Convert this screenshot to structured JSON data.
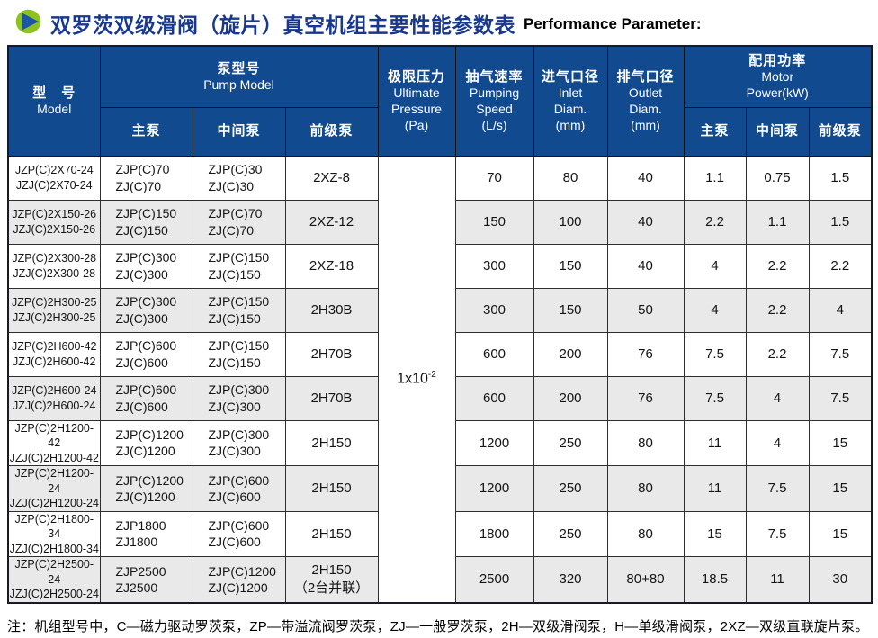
{
  "colors": {
    "header_blue": "#114a8e",
    "title_blue": "#17388c",
    "icon_green": "#8dc21f",
    "icon_triangle_blue": "#1b55a6",
    "row_shade": "#e9e9e9"
  },
  "title": {
    "zh": "双罗茨双级滑阀（旋片）真空机组主要性能参数表",
    "en": "Performance Parameter:"
  },
  "table": {
    "headers": {
      "model": {
        "zh": "型　号",
        "en": "Model"
      },
      "pump_model": {
        "zh": "泵型号",
        "en": "Pump Model"
      },
      "pump_sub": [
        "主泵",
        "中间泵",
        "前级泵"
      ],
      "ultimate_pressure": {
        "lines": [
          "极限压力",
          "Ultimate",
          "Pressure",
          "(Pa)"
        ]
      },
      "pumping_speed": {
        "lines": [
          "抽气速率",
          "Pumping",
          "Speed",
          "(L/s)"
        ]
      },
      "inlet_diam": {
        "lines": [
          "进气口径",
          "Inlet",
          "Diam.",
          "(mm)"
        ]
      },
      "outlet_diam": {
        "lines": [
          "排气口径",
          "Outlet",
          "Diam.",
          "(mm)"
        ]
      },
      "motor_power": {
        "lines": [
          "配用功率",
          "Motor",
          "Power(kW)"
        ]
      },
      "power_sub": [
        "主泵",
        "中间泵",
        "前级泵"
      ]
    },
    "ultimate_pressure_value": {
      "base": "1x10",
      "exp": "-2"
    },
    "rows": [
      {
        "model": [
          "JZP(C)2X70-24",
          "JZJ(C)2X70-24"
        ],
        "main_pump": [
          "ZJP(C)70",
          "ZJ(C)70"
        ],
        "mid_pump": [
          "ZJP(C)30",
          "ZJ(C)30"
        ],
        "fore_pump": [
          "2XZ-8"
        ],
        "speed": "70",
        "inlet": "80",
        "outlet": "40",
        "power": [
          "1.1",
          "0.75",
          "1.5"
        ]
      },
      {
        "model": [
          "JZP(C)2X150-26",
          "JZJ(C)2X150-26"
        ],
        "main_pump": [
          "ZJP(C)150",
          "ZJ(C)150"
        ],
        "mid_pump": [
          "ZJP(C)70",
          "ZJ(C)70"
        ],
        "fore_pump": [
          "2XZ-12"
        ],
        "speed": "150",
        "inlet": "100",
        "outlet": "40",
        "power": [
          "2.2",
          "1.1",
          "1.5"
        ]
      },
      {
        "model": [
          "JZP(C)2X300-28",
          "JZJ(C)2X300-28"
        ],
        "main_pump": [
          "ZJP(C)300",
          "ZJ(C)300"
        ],
        "mid_pump": [
          "ZJP(C)150",
          "ZJ(C)150"
        ],
        "fore_pump": [
          "2XZ-18"
        ],
        "speed": "300",
        "inlet": "150",
        "outlet": "40",
        "power": [
          "4",
          "2.2",
          "2.2"
        ]
      },
      {
        "model": [
          "JZP(C)2H300-25",
          "JZJ(C)2H300-25"
        ],
        "main_pump": [
          "ZJP(C)300",
          "ZJ(C)300"
        ],
        "mid_pump": [
          "ZJP(C)150",
          "ZJ(C)150"
        ],
        "fore_pump": [
          "2H30B"
        ],
        "speed": "300",
        "inlet": "150",
        "outlet": "50",
        "power": [
          "4",
          "2.2",
          "4"
        ]
      },
      {
        "model": [
          "JZP(C)2H600-42",
          "JZJ(C)2H600-42"
        ],
        "main_pump": [
          "ZJP(C)600",
          "ZJ(C)600"
        ],
        "mid_pump": [
          "ZJP(C)150",
          "ZJ(C)150"
        ],
        "fore_pump": [
          "2H70B"
        ],
        "speed": "600",
        "inlet": "200",
        "outlet": "76",
        "power": [
          "7.5",
          "2.2",
          "7.5"
        ]
      },
      {
        "model": [
          "JZP(C)2H600-24",
          "JZJ(C)2H600-24"
        ],
        "main_pump": [
          "ZJP(C)600",
          "ZJ(C)600"
        ],
        "mid_pump": [
          "ZJP(C)300",
          "ZJ(C)300"
        ],
        "fore_pump": [
          "2H70B"
        ],
        "speed": "600",
        "inlet": "200",
        "outlet": "76",
        "power": [
          "7.5",
          "4",
          "7.5"
        ]
      },
      {
        "model": [
          "JZP(C)2H1200-42",
          "JZJ(C)2H1200-42"
        ],
        "main_pump": [
          "ZJP(C)1200",
          "ZJ(C)1200"
        ],
        "mid_pump": [
          "ZJP(C)300",
          "ZJ(C)300"
        ],
        "fore_pump": [
          "2H150"
        ],
        "speed": "1200",
        "inlet": "250",
        "outlet": "80",
        "power": [
          "11",
          "4",
          "15"
        ]
      },
      {
        "model": [
          "JZP(C)2H1200-24",
          "JZJ(C)2H1200-24"
        ],
        "main_pump": [
          "ZJP(C)1200",
          "ZJ(C)1200"
        ],
        "mid_pump": [
          "ZJP(C)600",
          "ZJ(C)600"
        ],
        "fore_pump": [
          "2H150"
        ],
        "speed": "1200",
        "inlet": "250",
        "outlet": "80",
        "power": [
          "11",
          "7.5",
          "15"
        ]
      },
      {
        "model": [
          "JZP(C)2H1800-34",
          "JZJ(C)2H1800-34"
        ],
        "main_pump": [
          "ZJP1800",
          "ZJ1800"
        ],
        "mid_pump": [
          "ZJP(C)600",
          "ZJ(C)600"
        ],
        "fore_pump": [
          "2H150"
        ],
        "speed": "1800",
        "inlet": "250",
        "outlet": "80",
        "power": [
          "15",
          "7.5",
          "15"
        ]
      },
      {
        "model": [
          "JZP(C)2H2500-24",
          "JZJ(C)2H2500-24"
        ],
        "main_pump": [
          "ZJP2500",
          "ZJ2500"
        ],
        "mid_pump": [
          "ZJP(C)1200",
          "ZJ(C)1200"
        ],
        "fore_pump": [
          "2H150",
          "（2台并联）"
        ],
        "speed": "2500",
        "inlet": "320",
        "outlet": "80+80",
        "power": [
          "18.5",
          "11",
          "30"
        ]
      }
    ]
  },
  "note": "注：机组型号中，C—磁力驱动罗茨泵，ZP—带溢流阀罗茨泵，ZJ—一般罗茨泵，2H—双级滑阀泵，H—单级滑阀泵，2XZ—双级直联旋片泵。"
}
